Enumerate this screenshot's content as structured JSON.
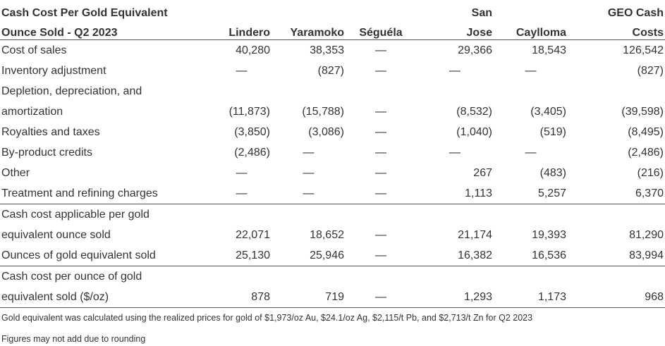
{
  "header": {
    "title_line1": "Cash Cost Per Gold Equivalent",
    "title_line2": "Ounce Sold - Q2 2023",
    "columns": [
      {
        "line1": "",
        "line2": "Lindero"
      },
      {
        "line1": "",
        "line2": "Yaramoko"
      },
      {
        "line1": "",
        "line2": "Séguéla"
      },
      {
        "line1": "San",
        "line2": "Jose"
      },
      {
        "line1": "",
        "line2": "Caylloma"
      },
      {
        "line1": "GEO Cash",
        "line2": "Costs"
      }
    ]
  },
  "rows": [
    {
      "label": "Cost of sales",
      "values": [
        "40,280",
        "38,353",
        "—",
        "29,366",
        "18,543",
        "126,542"
      ]
    },
    {
      "label": "Inventory adjustment",
      "values": [
        "—",
        "(827)",
        "—",
        "—",
        "—",
        "(827)"
      ]
    },
    {
      "label_line1": "Depletion, depreciation, and",
      "label_line2": "amortization",
      "values": [
        "(11,873)",
        "(15,788)",
        "—",
        "(8,532)",
        "(3,405)",
        "(39,598)"
      ]
    },
    {
      "label": "Royalties and taxes",
      "values": [
        "(3,850)",
        "(3,086)",
        "—",
        "(1,040)",
        "(519)",
        "(8,495)"
      ]
    },
    {
      "label": "By-product credits",
      "values": [
        "(2,486)",
        "—",
        "—",
        "—",
        "—",
        "(2,486)"
      ]
    },
    {
      "label": "Other",
      "values": [
        "—",
        "—",
        "—",
        "267",
        "(483)",
        "(216)"
      ]
    },
    {
      "label": "Treatment and refining charges",
      "values": [
        "—",
        "—",
        "—",
        "1,113",
        "5,257",
        "6,370"
      ]
    },
    {
      "label_line1": "Cash cost applicable per gold",
      "label_line2": "equivalent ounce sold",
      "values": [
        "22,071",
        "18,652",
        "—",
        "21,174",
        "19,393",
        "81,290"
      ]
    },
    {
      "label": "Ounces of gold equivalent sold",
      "values": [
        "25,130",
        "25,946",
        "—",
        "16,382",
        "16,536",
        "83,994"
      ]
    },
    {
      "label_line1": "Cash cost per ounce of gold",
      "label_line2": "equivalent sold ($/oz)",
      "values": [
        "878",
        "719",
        "—",
        "1,293",
        "1,173",
        "968"
      ]
    }
  ],
  "notes": [
    "Gold equivalent was calculated using the realized prices for gold of $1,973/oz Au, $24.1/oz Ag, $2,115/t Pb, and $2,713/t Zn for Q2 2023",
    "Figures may not add due to rounding"
  ]
}
